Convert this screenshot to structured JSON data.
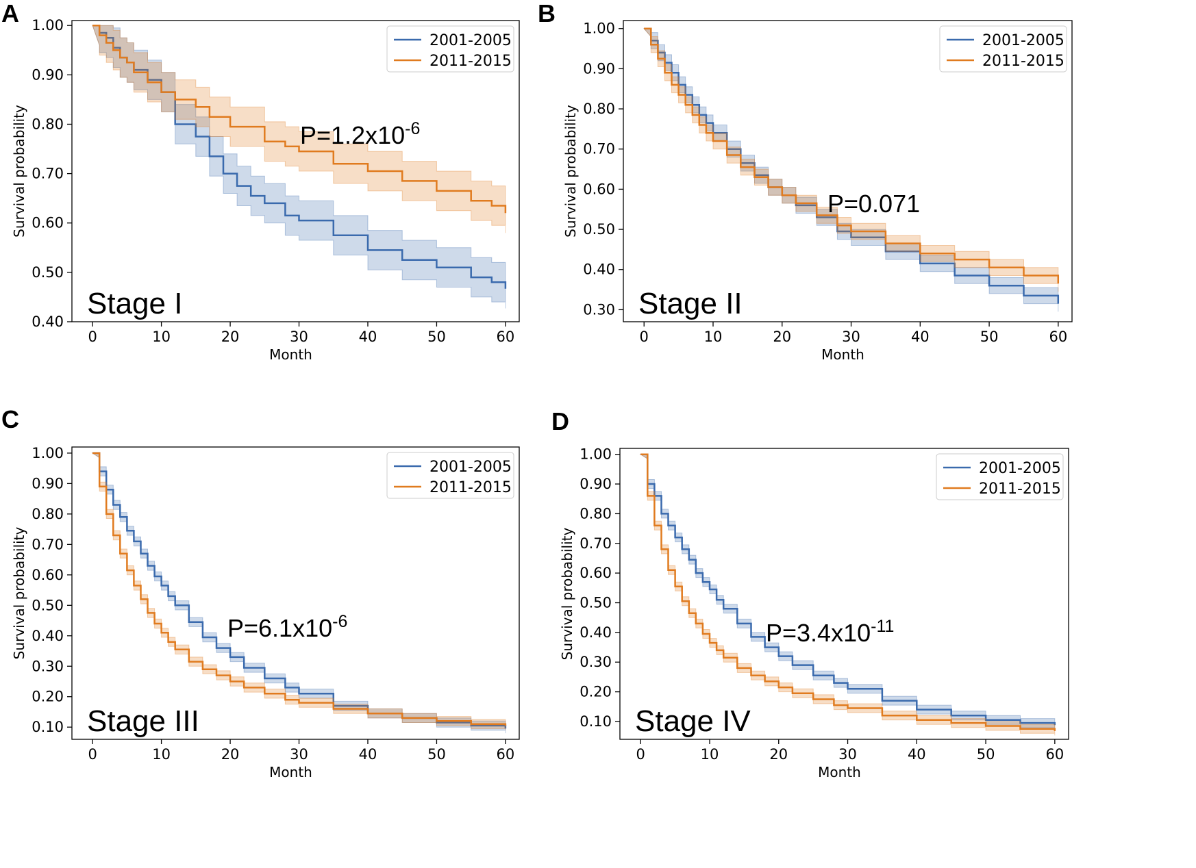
{
  "figure": {
    "panels": [
      {
        "letter": "A",
        "stage": "Stage I",
        "pvalue_base": "P=1.2x10",
        "pvalue_exp": "-6"
      },
      {
        "letter": "B",
        "stage": "Stage II",
        "pvalue_base": "P=0.071",
        "pvalue_exp": ""
      },
      {
        "letter": "C",
        "stage": "Stage III",
        "pvalue_base": "P=6.1x10",
        "pvalue_exp": "-6"
      },
      {
        "letter": "D",
        "stage": "Stage IV",
        "pvalue_base": "P=3.4x10",
        "pvalue_exp": "-11"
      }
    ]
  },
  "colors": {
    "series_2001_2005": "#3a6aad",
    "series_2011_2015": "#e07b1f"
  },
  "chart_data": [
    {
      "type": "line",
      "title": "",
      "xlabel": "Month",
      "ylabel": "Survival probability",
      "xlim": [
        -3,
        62
      ],
      "ylim": [
        0.4,
        1.01
      ],
      "xticks": [
        0,
        10,
        20,
        30,
        40,
        50,
        60
      ],
      "xtick_labels": [
        "0",
        "10",
        "20",
        "30",
        "40",
        "50",
        "60"
      ],
      "yticks": [
        0.4,
        0.5,
        0.6,
        0.7,
        0.8,
        0.9,
        1.0
      ],
      "ytick_labels": [
        "0.40",
        "0.50",
        "0.60",
        "0.70",
        "0.80",
        "0.90",
        "1.00"
      ],
      "grid": false,
      "legend": "top-right",
      "annotations": [
        "Stage I",
        "P=1.2x10-6"
      ],
      "series": [
        {
          "name": "2001-2005",
          "color": "#3a6aad",
          "band": 0.04,
          "x": [
            0,
            1,
            2,
            3,
            4,
            5,
            6,
            8,
            10,
            12,
            15,
            17,
            19,
            21,
            23,
            25,
            28,
            30,
            35,
            40,
            45,
            50,
            55,
            58,
            60
          ],
          "y": [
            1.0,
            0.985,
            0.975,
            0.955,
            0.935,
            0.925,
            0.91,
            0.89,
            0.865,
            0.8,
            0.775,
            0.735,
            0.7,
            0.675,
            0.655,
            0.64,
            0.615,
            0.605,
            0.575,
            0.545,
            0.525,
            0.51,
            0.49,
            0.48,
            0.467
          ]
        },
        {
          "name": "2011-2015",
          "color": "#e07b1f",
          "band": 0.04,
          "x": [
            0,
            1,
            2,
            3,
            4,
            5,
            6,
            8,
            10,
            12,
            15,
            17,
            20,
            25,
            28,
            30,
            35,
            40,
            45,
            50,
            55,
            58,
            60
          ],
          "y": [
            1.0,
            0.98,
            0.965,
            0.95,
            0.935,
            0.925,
            0.905,
            0.885,
            0.865,
            0.85,
            0.835,
            0.815,
            0.795,
            0.765,
            0.755,
            0.745,
            0.72,
            0.705,
            0.685,
            0.665,
            0.645,
            0.635,
            0.62
          ]
        }
      ]
    },
    {
      "type": "line",
      "title": "",
      "xlabel": "Month",
      "ylabel": "Survival probability",
      "xlim": [
        -3,
        62
      ],
      "ylim": [
        0.27,
        1.02
      ],
      "xticks": [
        0,
        10,
        20,
        30,
        40,
        50,
        60
      ],
      "xtick_labels": [
        "0",
        "10",
        "20",
        "30",
        "40",
        "50",
        "60"
      ],
      "yticks": [
        0.3,
        0.4,
        0.5,
        0.6,
        0.7,
        0.8,
        0.9,
        1.0
      ],
      "ytick_labels": [
        "0.30",
        "0.40",
        "0.50",
        "0.60",
        "0.70",
        "0.80",
        "0.90",
        "1.00"
      ],
      "grid": false,
      "legend": "top-right",
      "annotations": [
        "Stage II",
        "P=0.071"
      ],
      "series": [
        {
          "name": "2001-2005",
          "color": "#3a6aad",
          "band": 0.02,
          "x": [
            0,
            1,
            2,
            3,
            4,
            5,
            6,
            7,
            8,
            9,
            10,
            12,
            14,
            16,
            18,
            20,
            22,
            25,
            28,
            30,
            35,
            40,
            45,
            50,
            55,
            60
          ],
          "y": [
            1.0,
            0.97,
            0.94,
            0.915,
            0.89,
            0.86,
            0.835,
            0.81,
            0.785,
            0.765,
            0.74,
            0.7,
            0.665,
            0.635,
            0.605,
            0.585,
            0.56,
            0.53,
            0.495,
            0.48,
            0.445,
            0.415,
            0.385,
            0.36,
            0.335,
            0.315
          ]
        },
        {
          "name": "2011-2015",
          "color": "#e07b1f",
          "band": 0.02,
          "x": [
            0,
            1,
            2,
            3,
            4,
            5,
            6,
            7,
            8,
            9,
            10,
            12,
            14,
            16,
            18,
            20,
            22,
            25,
            28,
            30,
            35,
            40,
            45,
            50,
            55,
            60
          ],
          "y": [
            1.0,
            0.96,
            0.925,
            0.89,
            0.86,
            0.835,
            0.81,
            0.785,
            0.76,
            0.74,
            0.72,
            0.685,
            0.655,
            0.63,
            0.605,
            0.585,
            0.565,
            0.535,
            0.51,
            0.495,
            0.465,
            0.44,
            0.425,
            0.405,
            0.385,
            0.365
          ]
        }
      ]
    },
    {
      "type": "line",
      "title": "",
      "xlabel": "Month",
      "ylabel": "Survival probability",
      "xlim": [
        -3,
        62
      ],
      "ylim": [
        0.06,
        1.02
      ],
      "xticks": [
        0,
        10,
        20,
        30,
        40,
        50,
        60
      ],
      "xtick_labels": [
        "0",
        "10",
        "20",
        "30",
        "40",
        "50",
        "60"
      ],
      "yticks": [
        0.1,
        0.2,
        0.3,
        0.4,
        0.5,
        0.6,
        0.7,
        0.8,
        0.9,
        1.0
      ],
      "ytick_labels": [
        "0.10",
        "0.20",
        "0.30",
        "0.40",
        "0.50",
        "0.60",
        "0.70",
        "0.80",
        "0.90",
        "1.00"
      ],
      "grid": false,
      "legend": "top-right",
      "annotations": [
        "Stage III",
        "P=6.1x10-6"
      ],
      "series": [
        {
          "name": "2001-2005",
          "color": "#3a6aad",
          "band": 0.015,
          "x": [
            0,
            1,
            2,
            3,
            4,
            5,
            6,
            7,
            8,
            9,
            10,
            11,
            12,
            14,
            16,
            18,
            20,
            22,
            25,
            28,
            30,
            35,
            40,
            45,
            50,
            55,
            60
          ],
          "y": [
            1.0,
            0.94,
            0.88,
            0.83,
            0.79,
            0.745,
            0.71,
            0.67,
            0.63,
            0.595,
            0.565,
            0.53,
            0.5,
            0.445,
            0.395,
            0.36,
            0.33,
            0.295,
            0.26,
            0.23,
            0.21,
            0.17,
            0.145,
            0.13,
            0.115,
            0.105,
            0.095
          ]
        },
        {
          "name": "2011-2015",
          "color": "#e07b1f",
          "band": 0.015,
          "x": [
            0,
            1,
            2,
            3,
            4,
            5,
            6,
            7,
            8,
            9,
            10,
            11,
            12,
            14,
            16,
            18,
            20,
            22,
            25,
            28,
            30,
            35,
            40,
            45,
            50,
            55,
            60
          ],
          "y": [
            1.0,
            0.89,
            0.8,
            0.73,
            0.67,
            0.615,
            0.565,
            0.52,
            0.475,
            0.44,
            0.41,
            0.38,
            0.355,
            0.315,
            0.29,
            0.27,
            0.25,
            0.23,
            0.21,
            0.19,
            0.18,
            0.16,
            0.145,
            0.13,
            0.12,
            0.11,
            0.105
          ]
        }
      ]
    },
    {
      "type": "line",
      "title": "",
      "xlabel": "Month",
      "ylabel": "Survival probability",
      "xlim": [
        -3,
        62
      ],
      "ylim": [
        0.04,
        1.02
      ],
      "xticks": [
        0,
        10,
        20,
        30,
        40,
        50,
        60
      ],
      "xtick_labels": [
        "0",
        "10",
        "20",
        "30",
        "40",
        "50",
        "60"
      ],
      "yticks": [
        0.1,
        0.2,
        0.3,
        0.4,
        0.5,
        0.6,
        0.7,
        0.8,
        0.9,
        1.0
      ],
      "ytick_labels": [
        "0.10",
        "0.20",
        "0.30",
        "0.40",
        "0.50",
        "0.60",
        "0.70",
        "0.80",
        "0.90",
        "1.00"
      ],
      "grid": false,
      "legend": "top-right",
      "annotations": [
        "Stage IV",
        "P=3.4x10-11"
      ],
      "series": [
        {
          "name": "2001-2005",
          "color": "#3a6aad",
          "band": 0.015,
          "x": [
            0,
            1,
            2,
            3,
            4,
            5,
            6,
            7,
            8,
            9,
            10,
            11,
            12,
            14,
            16,
            18,
            20,
            22,
            25,
            28,
            30,
            35,
            40,
            45,
            50,
            55,
            60
          ],
          "y": [
            1.0,
            0.9,
            0.86,
            0.8,
            0.76,
            0.72,
            0.68,
            0.645,
            0.6,
            0.57,
            0.545,
            0.51,
            0.48,
            0.43,
            0.385,
            0.35,
            0.32,
            0.29,
            0.255,
            0.23,
            0.21,
            0.17,
            0.14,
            0.12,
            0.105,
            0.095,
            0.088
          ]
        },
        {
          "name": "2011-2015",
          "color": "#e07b1f",
          "band": 0.015,
          "x": [
            0,
            1,
            2,
            3,
            4,
            5,
            6,
            7,
            8,
            9,
            10,
            11,
            12,
            14,
            16,
            18,
            20,
            22,
            25,
            28,
            30,
            35,
            40,
            45,
            50,
            55,
            60
          ],
          "y": [
            1.0,
            0.86,
            0.76,
            0.68,
            0.61,
            0.555,
            0.505,
            0.465,
            0.43,
            0.395,
            0.365,
            0.34,
            0.315,
            0.28,
            0.255,
            0.235,
            0.215,
            0.195,
            0.175,
            0.155,
            0.145,
            0.12,
            0.105,
            0.095,
            0.085,
            0.075,
            0.068
          ]
        }
      ]
    }
  ]
}
